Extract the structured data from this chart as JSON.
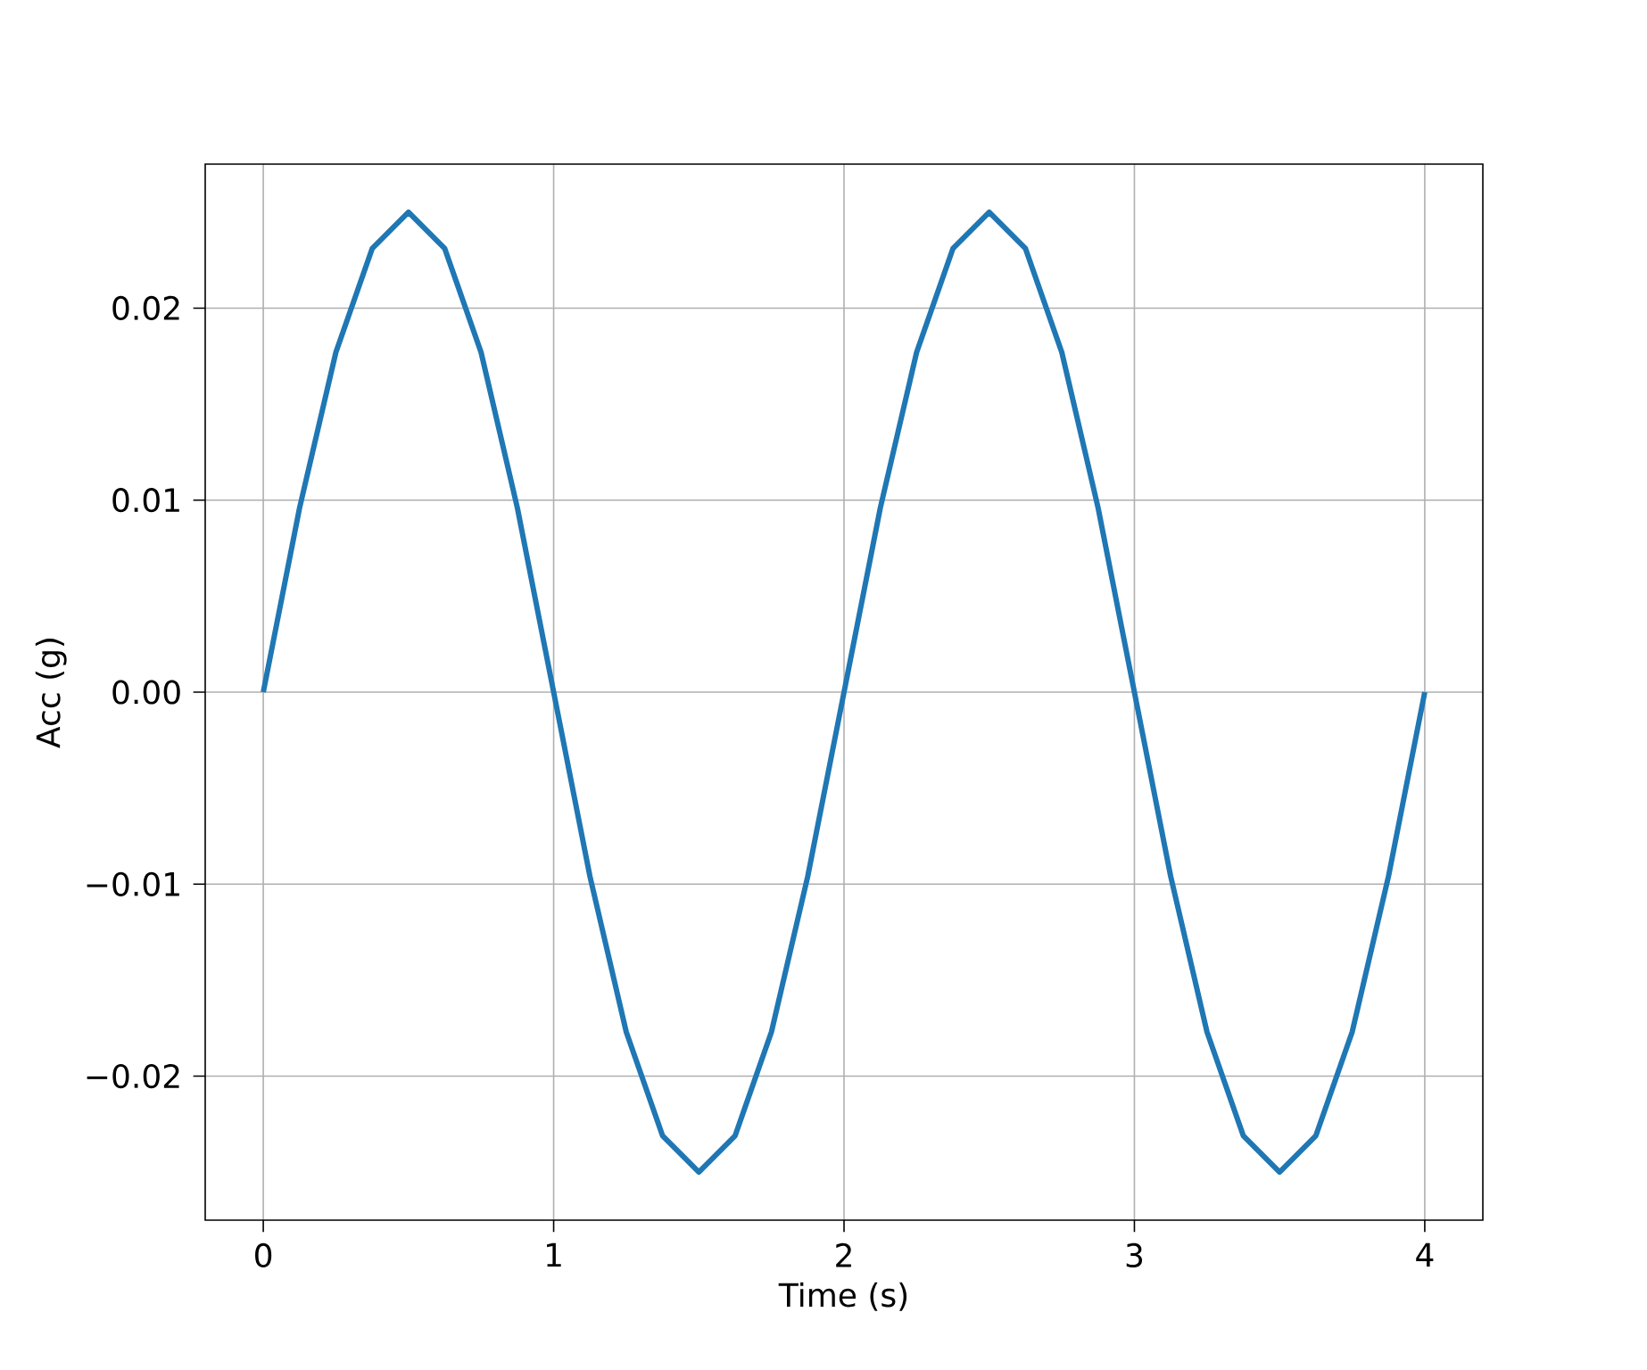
{
  "chart_data": {
    "type": "line",
    "xlabel": "Time (s)",
    "ylabel": "Acc (g)",
    "x": [
      0,
      0.125,
      0.25,
      0.375,
      0.5,
      0.625,
      0.75,
      0.875,
      1,
      1.125,
      1.25,
      1.375,
      1.5,
      1.625,
      1.75,
      1.875,
      2,
      2.125,
      2.25,
      2.375,
      2.5,
      2.625,
      2.75,
      2.875,
      3,
      3.125,
      3.25,
      3.375,
      3.5,
      3.625,
      3.75,
      3.875,
      4
    ],
    "series": [
      {
        "color": "#1f77b4",
        "values": [
          0,
          0.0096,
          0.0177,
          0.0231,
          0.025,
          0.0231,
          0.0177,
          0.0096,
          0,
          -0.0096,
          -0.0177,
          -0.0231,
          -0.025,
          -0.0231,
          -0.0177,
          -0.0096,
          0,
          0.0096,
          0.0177,
          0.0231,
          0.025,
          0.0231,
          0.0177,
          0.0096,
          0,
          -0.0096,
          -0.0177,
          -0.0231,
          -0.025,
          -0.0231,
          -0.0177,
          -0.0096,
          0
        ]
      }
    ],
    "xlim": [
      -0.2,
      4.2
    ],
    "ylim": [
      -0.0275,
      0.0275
    ],
    "xticks": [
      0,
      1,
      2,
      3,
      4
    ],
    "yticks": [
      {
        "value": -0.02,
        "label": "−0.02"
      },
      {
        "value": -0.01,
        "label": "−0.01"
      },
      {
        "value": 0,
        "label": "0.00"
      },
      {
        "value": 0.01,
        "label": "0.01"
      },
      {
        "value": 0.02,
        "label": "0.02"
      }
    ],
    "grid": true,
    "line_style": "solid",
    "marker": "none"
  }
}
